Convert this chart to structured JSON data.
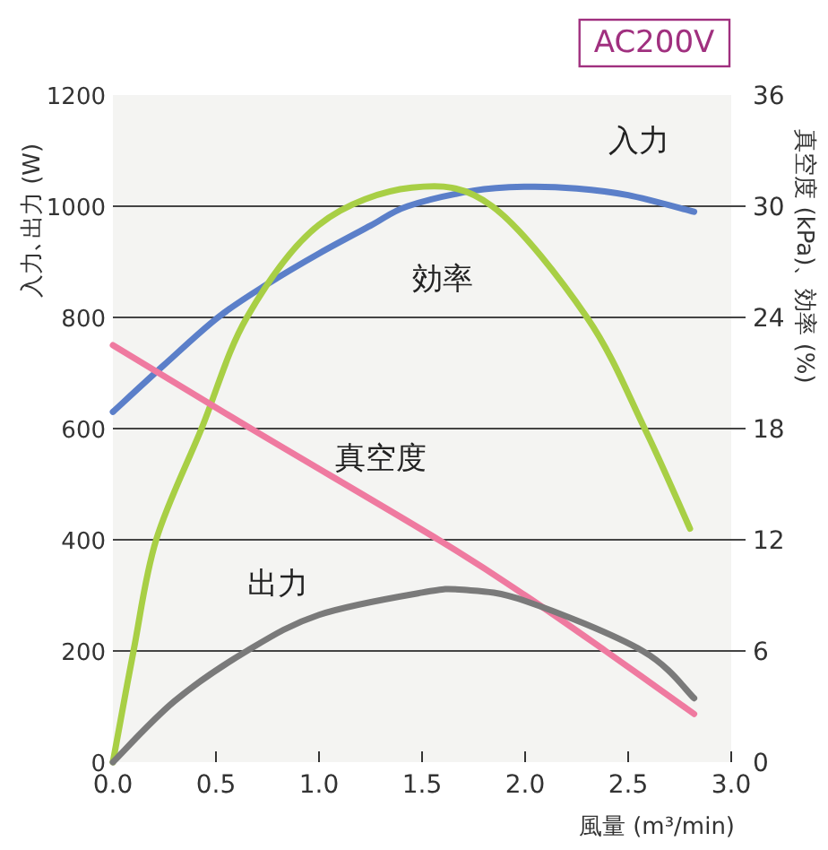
{
  "chart_data": {
    "type": "line",
    "annotations": [
      "AC200V"
    ],
    "xlabel": "風量 (m³/min)",
    "ylabel": "入力､出力 (W)",
    "y2label": "真空度 (kPa)、効率 (%)",
    "xlim": [
      0,
      3
    ],
    "xticks": [
      {
        "value": 0,
        "label": "0.0"
      },
      {
        "value": 0.5,
        "label": "0.5"
      },
      {
        "value": 1,
        "label": "1.0"
      },
      {
        "value": 1.5,
        "label": "1.5"
      },
      {
        "value": 2,
        "label": "2.0"
      },
      {
        "value": 2.5,
        "label": "2.5"
      },
      {
        "value": 3,
        "label": "3.0"
      }
    ],
    "ylim": [
      0,
      1200
    ],
    "yticks": [
      0,
      200,
      400,
      600,
      800,
      1000,
      1200
    ],
    "y2lim": [
      0,
      36
    ],
    "y2ticks": [
      0,
      6,
      12,
      18,
      24,
      30,
      36
    ],
    "grid": "y",
    "legend": false,
    "marker": "none",
    "line_style": "solid",
    "series": [
      {
        "name": "入力",
        "color": "#5b7fc9",
        "x": [
          0,
          0.25,
          0.51,
          0.75,
          1.0,
          1.25,
          1.43,
          1.75,
          2.0,
          2.25,
          2.5,
          2.82
        ],
        "values": [
          630,
          715,
          800,
          860,
          915,
          965,
          1000,
          1028,
          1035,
          1032,
          1020,
          990
        ]
      },
      {
        "name": "効率",
        "color": "#a8cf45",
        "axis": "y2",
        "x": [
          0,
          0.1,
          0.21,
          0.43,
          0.65,
          1.0,
          1.45,
          1.84,
          2.3,
          2.58,
          2.8
        ],
        "values": [
          0,
          6,
          12,
          18,
          24,
          29,
          31,
          30,
          24,
          18,
          12.6
        ]
      },
      {
        "name": "真空度",
        "color": "#ef7aa0",
        "axis": "y2",
        "x": [
          0,
          0.67,
          1.58,
          2.0,
          2.39,
          2.82
        ],
        "values": [
          22.5,
          18,
          12,
          9,
          6,
          2.6
        ]
      },
      {
        "name": "出力",
        "color": "#7a7a7a",
        "x": [
          0,
          0.3,
          0.65,
          1.0,
          1.5,
          1.7,
          2.0,
          2.57,
          2.82
        ],
        "values": [
          0,
          110,
          200,
          265,
          305,
          310,
          290,
          200,
          115
        ]
      }
    ]
  }
}
